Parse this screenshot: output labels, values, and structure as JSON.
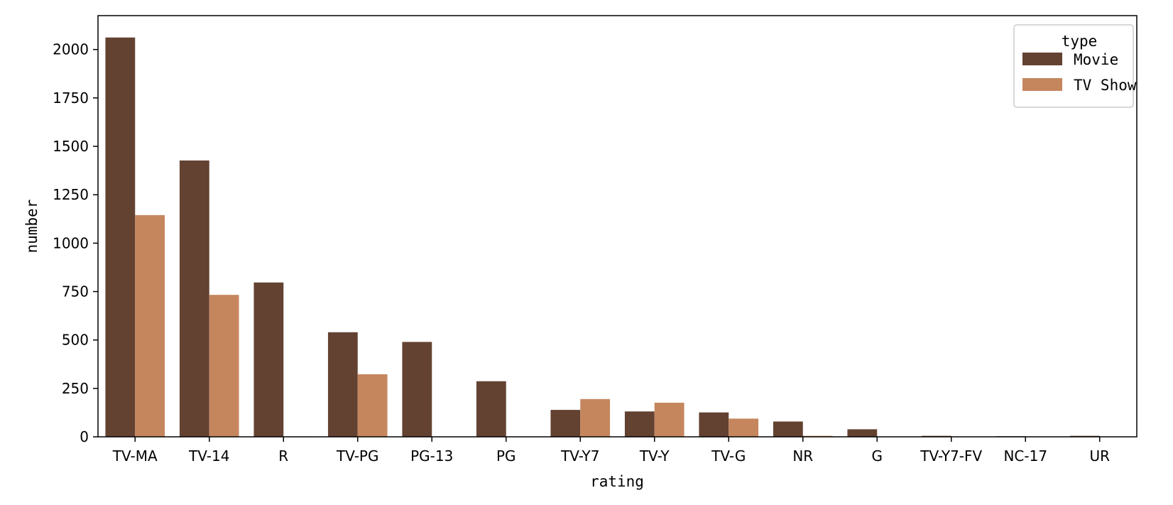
{
  "chart_data": {
    "type": "bar",
    "title": "",
    "xlabel": "rating",
    "ylabel": "number",
    "categories": [
      "TV-MA",
      "TV-14",
      "R",
      "TV-PG",
      "PG-13",
      "PG",
      "TV-Y7",
      "TV-Y",
      "TV-G",
      "NR",
      "G",
      "TV-Y7-FV",
      "NC-17",
      "UR"
    ],
    "series": [
      {
        "name": "Movie",
        "color": "#634232",
        "values": [
          2062,
          1427,
          797,
          540,
          490,
          287,
          139,
          131,
          126,
          79,
          39,
          5,
          3,
          5
        ]
      },
      {
        "name": "TV Show",
        "color": "#c5865e",
        "values": [
          1145,
          733,
          2,
          323,
          0,
          0,
          195,
          176,
          94,
          5,
          0,
          1,
          0,
          0
        ]
      }
    ],
    "ylim": [
      0,
      2175
    ],
    "yticks": [
      0,
      250,
      500,
      750,
      1000,
      1250,
      1500,
      1750,
      2000
    ],
    "grid": false,
    "legend": {
      "title": "type",
      "placement": "top-right"
    }
  }
}
